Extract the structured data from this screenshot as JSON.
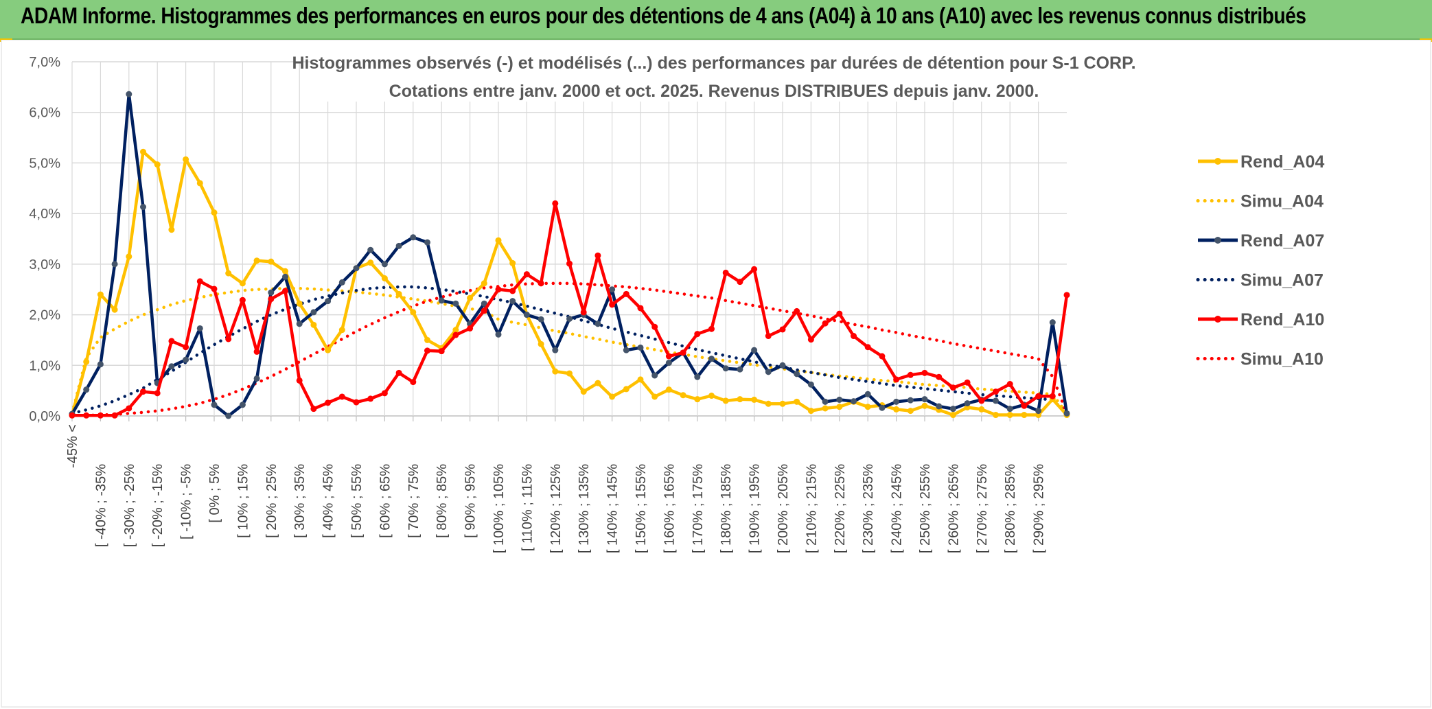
{
  "banner": {
    "title": "ADAM Informe. Histogrammes des performances en euros pour des détentions de 4 ans (A04) à 10 ans (A10) avec les revenus connus distribués"
  },
  "colors": {
    "banner_bg": "#86cc7e",
    "Rend_A04": "#ffc000",
    "Simu_A04": "#ffc000",
    "Rend_A07": "#002060",
    "Simu_A07": "#002060",
    "Rend_A10": "#ff0000",
    "Simu_A10": "#ff0000",
    "marker_A07": "#44546a",
    "grid": "#d9d9d9"
  },
  "chart_data": {
    "type": "line",
    "title": [
      "Histogrammes observés (-) et modélisés (...) des performances par durées de détention pour S-1 CORP.",
      "Cotations entre janv. 2000 et oct. 2025. Revenus DISTRIBUES depuis janv. 2000."
    ],
    "xlabel": "",
    "ylabel": "",
    "ylim": [
      0,
      7
    ],
    "yticks": [
      "0,0%",
      "1,0%",
      "2,0%",
      "3,0%",
      "4,0%",
      "5,0%",
      "6,0%",
      "7,0%"
    ],
    "grid": true,
    "legend_position": "right",
    "x_tick_labels": [
      "-45% <",
      "[ -40% ; -35%",
      "[ -30% ; -25%",
      "[ -20% ; -15%",
      "[ -10% ; -5%",
      "[ 0% ; 5%",
      "[ 10% ; 15%",
      "[ 20% ; 25%",
      "[ 30% ; 35%",
      "[ 40% ; 45%",
      "[ 50% ; 55%",
      "[ 60% ; 65%",
      "[ 70% ; 75%",
      "[ 80% ; 85%",
      "[ 90% ; 95%",
      "[ 100% ; 105%",
      "[ 110% ; 115%",
      "[ 120% ; 125%",
      "[ 130% ; 135%",
      "[ 140% ; 145%",
      "[ 150% ; 155%",
      "[ 160% ; 165%",
      "[ 170% ; 175%",
      "[ 180% ; 185%",
      "[ 190% ; 195%",
      "[ 200% ; 205%",
      "[ 210% ; 215%",
      "[ 220% ; 225%",
      "[ 230% ; 235%",
      "[ 240% ; 245%",
      "[ 250% ; 255%",
      "[ 260% ; 265%",
      "[ 270% ; 275%",
      "[ 280% ; 285%",
      "[ 290% ; 295%"
    ],
    "series": [
      {
        "name": "Rend_A04",
        "style": "solid",
        "values": [
          0.02,
          1.07,
          2.4,
          2.1,
          3.15,
          5.22,
          4.97,
          3.68,
          5.07,
          4.6,
          4.02,
          2.82,
          2.62,
          3.07,
          3.05,
          2.86,
          2.22,
          1.8,
          1.3,
          1.7,
          2.92,
          3.03,
          2.72,
          2.41,
          2.05,
          1.5,
          1.34,
          1.7,
          2.33,
          2.62,
          3.47,
          3.02,
          2.0,
          1.42,
          0.88,
          0.84,
          0.48,
          0.65,
          0.38,
          0.53,
          0.72,
          0.38,
          0.52,
          0.41,
          0.33,
          0.4,
          0.3,
          0.33,
          0.32,
          0.24,
          0.24,
          0.28,
          0.1,
          0.15,
          0.18,
          0.28,
          0.18,
          0.21,
          0.13,
          0.1,
          0.2,
          0.12,
          0.02,
          0.17,
          0.13,
          0.02,
          0.02,
          0.02,
          0.02,
          0.33,
          0.02
        ]
      },
      {
        "name": "Simu_A04",
        "style": "dotted",
        "values": [
          0.05,
          1.15,
          1.55,
          1.72,
          1.87,
          2.0,
          2.1,
          2.2,
          2.28,
          2.34,
          2.4,
          2.44,
          2.48,
          2.5,
          2.51,
          2.52,
          2.52,
          2.51,
          2.49,
          2.47,
          2.45,
          2.42,
          2.39,
          2.35,
          2.31,
          2.27,
          2.22,
          2.17,
          2.12,
          2.07,
          1.91,
          1.85,
          1.8,
          1.74,
          1.68,
          1.63,
          1.57,
          1.52,
          1.46,
          1.41,
          1.36,
          1.31,
          1.26,
          1.22,
          1.17,
          1.13,
          1.09,
          1.05,
          1.01,
          0.97,
          0.93,
          0.89,
          0.86,
          0.82,
          0.79,
          0.76,
          0.73,
          0.7,
          0.68,
          0.65,
          0.62,
          0.6,
          0.58,
          0.56,
          0.53,
          0.51,
          0.49,
          0.47,
          0.45,
          0.43,
          0.05
        ]
      },
      {
        "name": "Rend_A07",
        "style": "solid",
        "values": [
          0.04,
          0.52,
          1.02,
          3.0,
          6.36,
          4.13,
          0.65,
          0.98,
          1.11,
          1.73,
          0.22,
          0.0,
          0.22,
          0.74,
          2.44,
          2.75,
          1.82,
          2.05,
          2.27,
          2.64,
          2.92,
          3.28,
          3.0,
          3.36,
          3.53,
          3.43,
          2.28,
          2.22,
          1.82,
          2.22,
          1.61,
          2.27,
          2.0,
          1.91,
          1.3,
          1.92,
          2.0,
          1.82,
          2.5,
          1.3,
          1.35,
          0.8,
          1.05,
          1.25,
          0.77,
          1.13,
          0.94,
          0.92,
          1.3,
          0.87,
          1.0,
          0.83,
          0.62,
          0.28,
          0.32,
          0.29,
          0.43,
          0.16,
          0.28,
          0.31,
          0.33,
          0.19,
          0.14,
          0.25,
          0.32,
          0.3,
          0.14,
          0.22,
          0.1,
          1.85,
          0.05
        ]
      },
      {
        "name": "Simu_A07",
        "style": "dotted",
        "values": [
          0.05,
          0.12,
          0.2,
          0.3,
          0.42,
          0.55,
          0.72,
          0.88,
          1.06,
          1.24,
          1.41,
          1.57,
          1.72,
          1.87,
          2.0,
          2.11,
          2.21,
          2.3,
          2.37,
          2.43,
          2.48,
          2.52,
          2.54,
          2.55,
          2.55,
          2.53,
          2.5,
          2.46,
          2.41,
          2.36,
          2.3,
          2.24,
          2.17,
          2.1,
          2.03,
          1.96,
          1.88,
          1.81,
          1.73,
          1.66,
          1.59,
          1.52,
          1.45,
          1.38,
          1.31,
          1.25,
          1.19,
          1.13,
          1.07,
          1.01,
          0.96,
          0.91,
          0.86,
          0.81,
          0.76,
          0.72,
          0.68,
          0.64,
          0.6,
          0.57,
          0.54,
          0.51,
          0.48,
          0.45,
          0.42,
          0.4,
          0.38,
          0.36,
          0.34,
          0.32,
          0.05
        ]
      },
      {
        "name": "Rend_A10",
        "style": "solid",
        "values": [
          0.01,
          0.01,
          0.01,
          0.01,
          0.15,
          0.48,
          0.45,
          1.48,
          1.36,
          2.66,
          2.51,
          1.52,
          2.29,
          1.27,
          2.31,
          2.47,
          0.7,
          0.14,
          0.26,
          0.38,
          0.27,
          0.34,
          0.45,
          0.85,
          0.67,
          1.29,
          1.28,
          1.6,
          1.73,
          2.08,
          2.5,
          2.47,
          2.8,
          2.62,
          4.2,
          3.01,
          2.05,
          3.17,
          2.2,
          2.41,
          2.13,
          1.76,
          1.18,
          1.25,
          1.62,
          1.72,
          2.83,
          2.65,
          2.9,
          1.58,
          1.71,
          2.07,
          1.51,
          1.83,
          2.02,
          1.58,
          1.36,
          1.18,
          0.72,
          0.81,
          0.85,
          0.77,
          0.56,
          0.66,
          0.3,
          0.48,
          0.63,
          0.2,
          0.39,
          0.39,
          2.39
        ]
      },
      {
        "name": "Simu_A10",
        "style": "dotted",
        "values": [
          0.01,
          0.01,
          0.02,
          0.03,
          0.05,
          0.07,
          0.1,
          0.14,
          0.19,
          0.25,
          0.33,
          0.42,
          0.53,
          0.65,
          0.78,
          0.92,
          1.07,
          1.22,
          1.37,
          1.52,
          1.67,
          1.81,
          1.94,
          2.06,
          2.17,
          2.27,
          2.35,
          2.42,
          2.48,
          2.53,
          2.56,
          2.59,
          2.61,
          2.62,
          2.62,
          2.62,
          2.61,
          2.59,
          2.57,
          2.55,
          2.52,
          2.49,
          2.45,
          2.41,
          2.37,
          2.33,
          2.28,
          2.23,
          2.18,
          2.13,
          2.08,
          2.03,
          1.98,
          1.92,
          1.87,
          1.81,
          1.76,
          1.7,
          1.65,
          1.59,
          1.54,
          1.49,
          1.43,
          1.38,
          1.33,
          1.28,
          1.23,
          1.18,
          1.13,
          0.78,
          0.05
        ]
      }
    ]
  }
}
